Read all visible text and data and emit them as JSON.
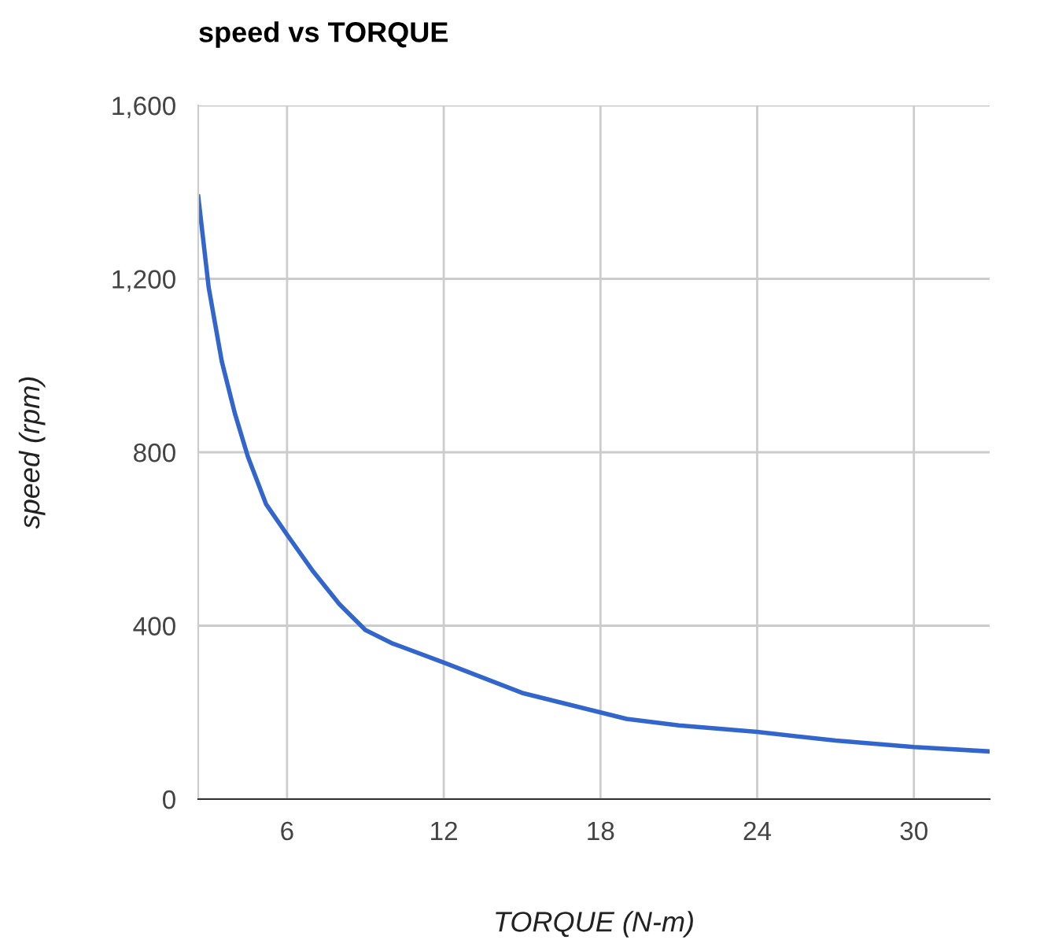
{
  "chart_data": {
    "type": "line",
    "title": "speed vs TORQUE",
    "xlabel": "TORQUE (N-m)",
    "ylabel": "speed (rpm)",
    "x": [
      2.6,
      3.0,
      3.5,
      4.0,
      4.5,
      5.2,
      6.0,
      7.0,
      8.0,
      9.0,
      10.0,
      12.0,
      15.0,
      18.0,
      19.0,
      21.0,
      24.0,
      27.0,
      30.0,
      32.9
    ],
    "series": [
      {
        "color": "#3366cc",
        "values": [
          1390,
          1180,
          1010,
          890,
          790,
          680,
          610,
          525,
          450,
          390,
          360,
          315,
          245,
          200,
          185,
          170,
          155,
          135,
          120,
          110
        ]
      }
    ],
    "xlim": [
      2.6,
      32.9
    ],
    "xticks": [
      6,
      12,
      18,
      24,
      30
    ],
    "ylim": [
      0,
      1600
    ],
    "yticks": [
      {
        "value": 0,
        "label": "0"
      },
      {
        "value": 400,
        "label": "400"
      },
      {
        "value": 800,
        "label": "800"
      },
      {
        "value": 1200,
        "label": "1,200"
      },
      {
        "value": 1600,
        "label": "1,600"
      }
    ],
    "grid": true,
    "marker": "none",
    "line_style": "solid"
  }
}
